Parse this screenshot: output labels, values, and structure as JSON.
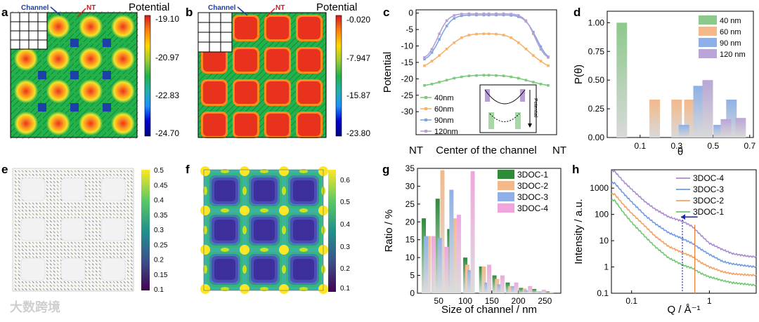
{
  "panels": {
    "a": {
      "label": "a",
      "channel_label": "Channel",
      "nt_label": "NT",
      "cbar_title": "Potential",
      "cbar_ticks": [
        "-19.10",
        "-20.97",
        "-22.83",
        "-24.70"
      ],
      "colors": {
        "spot": "#e8321e",
        "channel": "#1d3fa8",
        "field": "#22b24c"
      }
    },
    "b": {
      "label": "b",
      "channel_label": "Channel",
      "nt_label": "NT",
      "cbar_title": "Potential",
      "cbar_ticks": [
        "-0.020",
        "-7.947",
        "-15.87",
        "-23.80"
      ]
    },
    "c": {
      "label": "c",
      "ylabel": "Potential",
      "xticks": [
        "NT",
        "Center of the channel",
        "NT"
      ],
      "inset_label": "Potential"
    },
    "d": {
      "label": "d",
      "ylabel": "P(θ)",
      "xlabel": "θ"
    },
    "e": {
      "label": "e",
      "cbar_ticks": [
        "0.5",
        "0.45",
        "0.4",
        "0.35",
        "0.3",
        "0.25",
        "0.2",
        "0.15",
        "0.1"
      ]
    },
    "f": {
      "label": "f",
      "cbar_ticks": [
        "0.6",
        "0.5",
        "0.4",
        "0.3",
        "0.2",
        "0.1"
      ]
    },
    "g": {
      "label": "g"
    },
    "h": {
      "label": "h"
    }
  },
  "watermark": "大数跨境",
  "chart_data": [
    {
      "panel": "c",
      "type": "line",
      "x": [
        0,
        0.03,
        0.06,
        0.09,
        0.12,
        0.15,
        0.18,
        0.21,
        0.24,
        0.27,
        0.3,
        0.33,
        0.36,
        0.39,
        0.42,
        0.45,
        0.48,
        0.5,
        0.52,
        0.55,
        0.58,
        0.61,
        0.64,
        0.67,
        0.7,
        0.73,
        0.76,
        0.79,
        0.82,
        0.85,
        0.88,
        0.91,
        0.94,
        0.97,
        1.0
      ],
      "xticks": [
        "NT",
        "Center of the channel",
        "NT"
      ],
      "ylabel": "Potential",
      "ylim": [
        -37,
        1
      ],
      "yticks": [
        0,
        -5,
        -10,
        -15,
        -20,
        -25,
        -30
      ],
      "series": [
        {
          "name": "40nm",
          "color": "#7fc97f",
          "values": [
            -22,
            -21.8,
            -21.6,
            -21.3,
            -21.0,
            -20.7,
            -20.4,
            -20.1,
            -19.8,
            -19.6,
            -19.4,
            -19.2,
            -19.1,
            -19.0,
            -19.0,
            -18.9,
            -18.9,
            -18.9,
            -18.9,
            -18.9,
            -19.0,
            -19.0,
            -19.1,
            -19.2,
            -19.4,
            -19.6,
            -19.8,
            -20.1,
            -20.4,
            -20.7,
            -21.0,
            -21.3,
            -21.6,
            -21.8,
            -22
          ]
        },
        {
          "name": "60nm",
          "color": "#f7b26b",
          "values": [
            -16,
            -15.4,
            -14.6,
            -13.8,
            -12.9,
            -11.9,
            -10.9,
            -9.9,
            -9.0,
            -8.2,
            -7.5,
            -7.0,
            -6.7,
            -6.5,
            -6.4,
            -6.3,
            -6.3,
            -6.3,
            -6.3,
            -6.3,
            -6.4,
            -6.5,
            -6.7,
            -7.0,
            -7.5,
            -8.2,
            -9.0,
            -9.9,
            -10.9,
            -11.9,
            -12.9,
            -13.8,
            -14.6,
            -15.4,
            -16
          ]
        },
        {
          "name": "90nm",
          "color": "#7ea6e0",
          "values": [
            -14,
            -13.3,
            -12.0,
            -10.2,
            -8.0,
            -5.8,
            -3.9,
            -2.5,
            -1.6,
            -1.1,
            -0.8,
            -0.7,
            -0.6,
            -0.6,
            -0.6,
            -0.6,
            -0.6,
            -0.6,
            -0.6,
            -0.6,
            -0.6,
            -0.6,
            -0.6,
            -0.6,
            -0.7,
            -0.8,
            -1.1,
            -1.6,
            -2.5,
            -3.9,
            -5.8,
            -8.0,
            -10.2,
            -12.0,
            -13.3
          ]
        },
        {
          "name": "120nm",
          "color": "#b79fd3",
          "values": [
            -13.5,
            -12.6,
            -11.0,
            -8.8,
            -6.3,
            -4.0,
            -2.3,
            -1.3,
            -0.7,
            -0.4,
            -0.3,
            -0.2,
            -0.2,
            -0.2,
            -0.2,
            -0.2,
            -0.2,
            -0.2,
            -0.2,
            -0.2,
            -0.2,
            -0.2,
            -0.2,
            -0.2,
            -0.3,
            -0.4,
            -0.7,
            -1.3,
            -2.3,
            -4.0,
            -6.3,
            -8.8,
            -11.0,
            -12.6,
            -13.5
          ]
        }
      ]
    },
    {
      "panel": "d",
      "type": "bar",
      "ylabel": "P(θ)",
      "xlabel": "θ",
      "xlim": [
        -0.08,
        0.72
      ],
      "xticks": [
        0.1,
        0.3,
        0.5,
        0.7
      ],
      "xticklabels": [
        "0.1",
        "0.3",
        "0.5",
        "0.7"
      ],
      "ylim": [
        0,
        1.1
      ],
      "yticks": [
        0,
        0.25,
        0.5,
        0.75,
        1.0
      ],
      "yticklabels": [
        "0.00",
        "0.25",
        "0.50",
        "0.75",
        "1.00"
      ],
      "legend": "top-right",
      "series": [
        {
          "name": "40 nm",
          "color": "#8cc98c",
          "x": [
            0.0
          ],
          "values": [
            1.0
          ]
        },
        {
          "name": "60 nm",
          "color": "#f3b98a",
          "x": [
            0.18,
            0.3,
            0.37
          ],
          "values": [
            0.33,
            0.33,
            0.33
          ]
        },
        {
          "name": "90 nm",
          "color": "#8fb0e6",
          "x": [
            0.34,
            0.42,
            0.53,
            0.6
          ],
          "values": [
            0.11,
            0.45,
            0.11,
            0.33
          ]
        },
        {
          "name": "120 nm",
          "color": "#b9a6d6",
          "x": [
            0.47,
            0.57,
            0.65
          ],
          "values": [
            0.5,
            0.16,
            0.17
          ]
        }
      ]
    },
    {
      "panel": "g",
      "type": "bar",
      "xlabel": "Size of channel / nm",
      "ylabel": "Ratio / %",
      "xlim": [
        10,
        280
      ],
      "xticks": [
        50,
        100,
        150,
        200,
        250
      ],
      "ylim": [
        0,
        35
      ],
      "yticks": [
        0,
        5,
        10,
        15,
        20,
        25,
        30,
        35
      ],
      "legend": "top-right",
      "series": [
        {
          "name": "3DOC-1",
          "color": "#2e8b3a",
          "x": [
            22,
            48,
            70,
            100,
            130,
            155,
            180,
            205,
            230,
            255
          ],
          "values": [
            21,
            26.5,
            18,
            10,
            7.5,
            5,
            3,
            1.5,
            1.2,
            0.5
          ]
        },
        {
          "name": "3DOC-2",
          "color": "#f3b98a",
          "x": [
            31,
            57,
            80,
            104,
            135,
            160,
            185,
            212,
            237,
            262
          ],
          "values": [
            16,
            34.5,
            21,
            8,
            7.5,
            4,
            2,
            1.3,
            0.5,
            0.3
          ]
        },
        {
          "name": "3DOC-3",
          "color": "#8fb0e6",
          "x": [
            26,
            52,
            74,
            108,
            140,
            164,
            190,
            215,
            240
          ],
          "values": [
            16,
            15.5,
            29,
            6.5,
            3,
            2.5,
            2,
            0.8,
            0.5
          ]
        },
        {
          "name": "3DOC-4",
          "color": "#f0a6dd",
          "x": [
            40,
            65,
            88,
            114,
            145,
            170,
            196,
            222,
            248
          ],
          "values": [
            16,
            13,
            22,
            34.2,
            8,
            5,
            3,
            2,
            1
          ]
        }
      ]
    },
    {
      "panel": "h",
      "type": "line",
      "xlabel": "Q / Å⁻¹",
      "ylabel": "Intensity / a.u.",
      "xscale": "log",
      "yscale": "log",
      "xlim": [
        0.055,
        4.0
      ],
      "ylim": [
        0.1,
        5000
      ],
      "xticks": [
        0.1,
        1
      ],
      "xticklabels": [
        "0.1",
        "1"
      ],
      "yticks": [
        0.1,
        1,
        10,
        100,
        1000
      ],
      "yticklabels": [
        "0.1",
        "1",
        "10",
        "100",
        "1000"
      ],
      "legend": "top-right",
      "markers": {
        "blue_line_q": 0.45,
        "orange_line_q": 0.65
      },
      "series": [
        {
          "name": "3DOC-4",
          "color": "#a98bcf",
          "x": [
            0.06,
            0.08,
            0.1,
            0.15,
            0.2,
            0.3,
            0.45,
            0.6,
            0.8,
            1.0,
            1.5,
            2.0,
            3.0,
            4.0
          ],
          "values": [
            4500,
            1700,
            900,
            300,
            160,
            80,
            55,
            35,
            15,
            8,
            4.5,
            3.2,
            2.6,
            2.4
          ]
        },
        {
          "name": "3DOC-3",
          "color": "#6f9be3",
          "x": [
            0.06,
            0.08,
            0.1,
            0.15,
            0.2,
            0.3,
            0.45,
            0.6,
            0.8,
            1.0,
            1.5,
            2.0,
            3.0,
            4.0
          ],
          "values": [
            1600,
            600,
            300,
            90,
            45,
            20,
            12,
            8,
            4.5,
            3,
            1.6,
            1.3,
            1.1,
            1.0
          ]
        },
        {
          "name": "3DOC-2",
          "color": "#f2a064",
          "x": [
            0.06,
            0.08,
            0.1,
            0.15,
            0.2,
            0.3,
            0.45,
            0.6,
            0.8,
            1.0,
            1.5,
            2.0,
            3.0,
            4.0
          ],
          "values": [
            600,
            220,
            110,
            35,
            15,
            6,
            3.5,
            2.5,
            1.4,
            1.0,
            0.65,
            0.55,
            0.5,
            0.48
          ]
        },
        {
          "name": "3DOC-1",
          "color": "#6fc86f",
          "x": [
            0.06,
            0.08,
            0.1,
            0.15,
            0.2,
            0.3,
            0.45,
            0.6,
            0.8,
            1.0,
            1.5,
            2.0,
            3.0,
            4.0
          ],
          "values": [
            350,
            110,
            50,
            14,
            6,
            2.2,
            1.2,
            0.9,
            0.55,
            0.42,
            0.3,
            0.25,
            0.22,
            0.2
          ]
        }
      ]
    }
  ]
}
